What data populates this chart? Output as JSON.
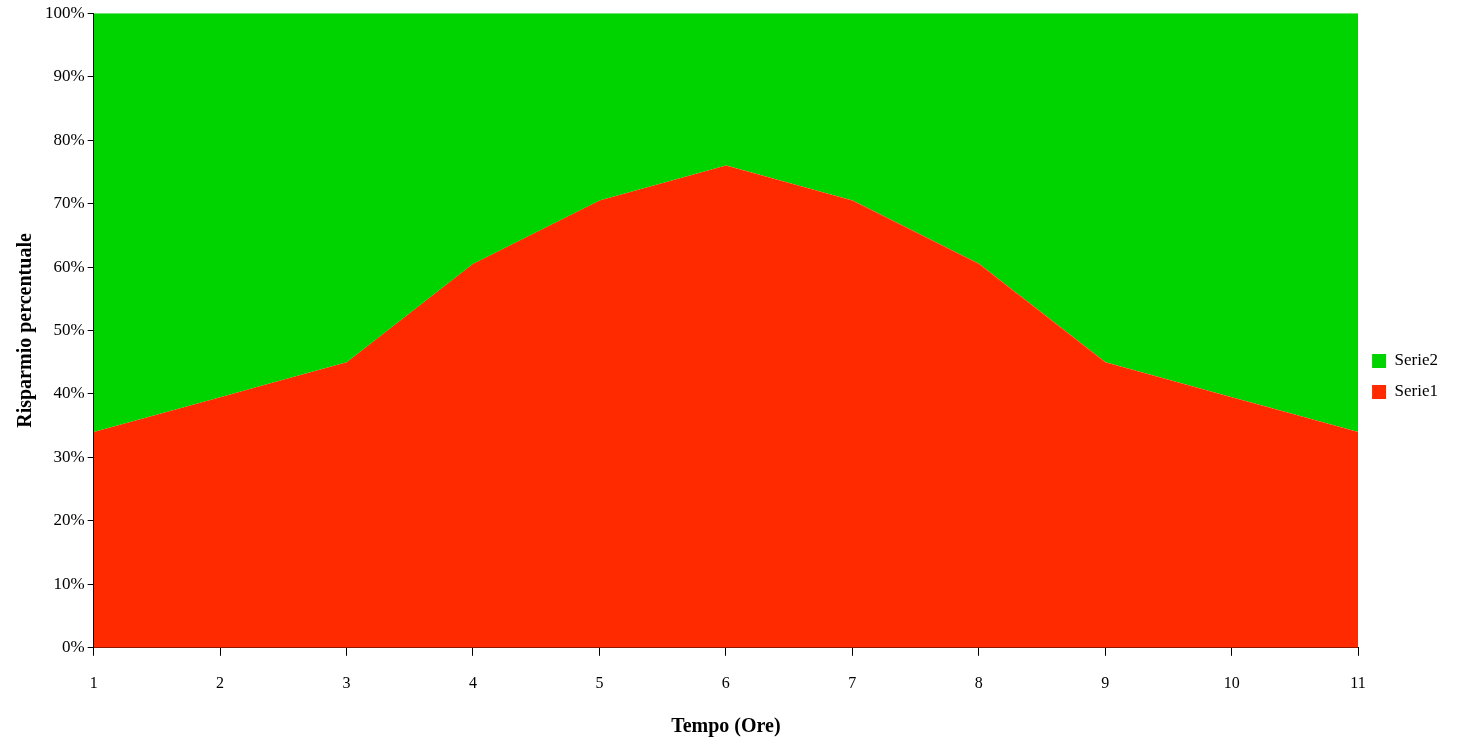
{
  "chart_data": {
    "type": "area",
    "stacked": true,
    "xlabel": "Tempo (Ore)",
    "ylabel": "Risparmio percentuale",
    "categories": [
      "1",
      "2",
      "3",
      "4",
      "5",
      "6",
      "7",
      "8",
      "9",
      "10",
      "11"
    ],
    "series": [
      {
        "name": "Serie1",
        "color": "#ff2a00",
        "values": [
          34,
          39.5,
          45,
          60.5,
          70.5,
          76,
          70.5,
          60.5,
          45,
          39.5,
          34
        ]
      },
      {
        "name": "Serie2",
        "color": "#00d400",
        "values": [
          66,
          60.5,
          55,
          39.5,
          29.5,
          24,
          29.5,
          39.5,
          55,
          60.5,
          66
        ]
      }
    ],
    "ylim": [
      0,
      100
    ],
    "yticks": [
      {
        "value": 0,
        "label": "0%"
      },
      {
        "value": 10,
        "label": "10%"
      },
      {
        "value": 20,
        "label": "20%"
      },
      {
        "value": 30,
        "label": "30%"
      },
      {
        "value": 40,
        "label": "40%"
      },
      {
        "value": 50,
        "label": "50%"
      },
      {
        "value": 60,
        "label": "60%"
      },
      {
        "value": 70,
        "label": "70%"
      },
      {
        "value": 80,
        "label": "80%"
      },
      {
        "value": 90,
        "label": "90%"
      },
      {
        "value": 100,
        "label": "100%"
      }
    ],
    "legend": "right"
  }
}
